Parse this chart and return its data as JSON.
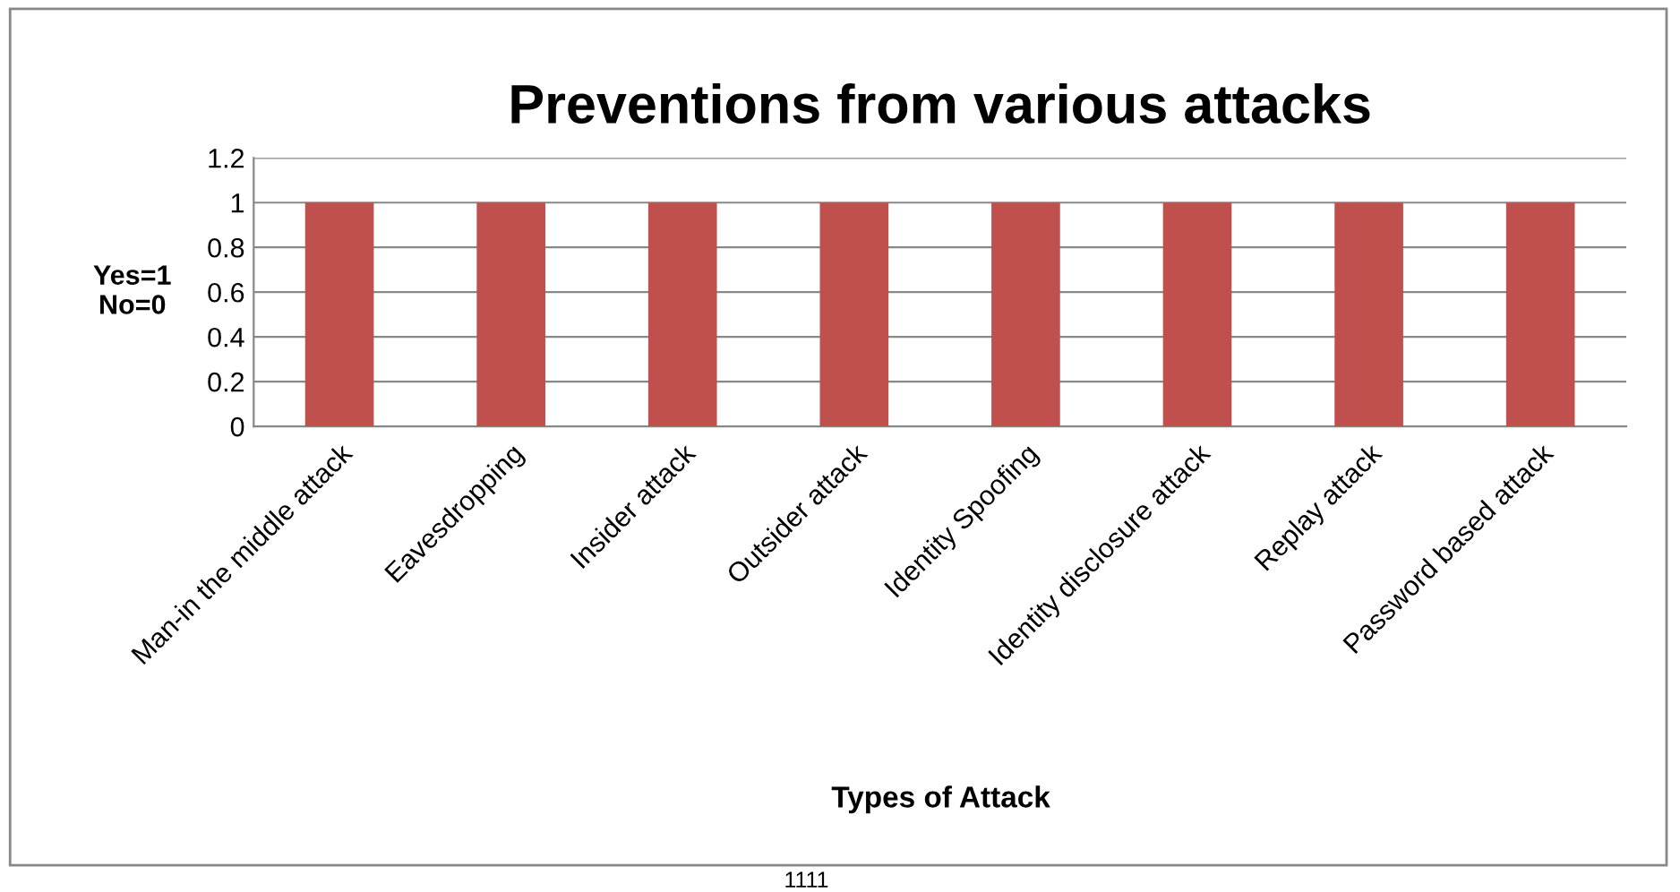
{
  "chart_data": {
    "type": "bar",
    "title": "Preventions from various attacks",
    "xlabel": "Types of Attack",
    "ylabel": "Yes=1\nNo=0",
    "categories": [
      "Man-in the middle attack",
      "Eavesdropping",
      "Insider attack",
      "Outsider attack",
      "Identity Spoofing",
      "Identity disclosure attack",
      "Replay attack",
      "Password based attack"
    ],
    "values": [
      1,
      1,
      1,
      1,
      1,
      1,
      1,
      1
    ],
    "color": "#c0504d",
    "ylim": [
      0,
      1.2
    ],
    "yticks": [
      0,
      0.2,
      0.4,
      0.6,
      0.8,
      1,
      1.2
    ],
    "grid": "y",
    "legend": false,
    "annotations": [
      "1111"
    ]
  }
}
